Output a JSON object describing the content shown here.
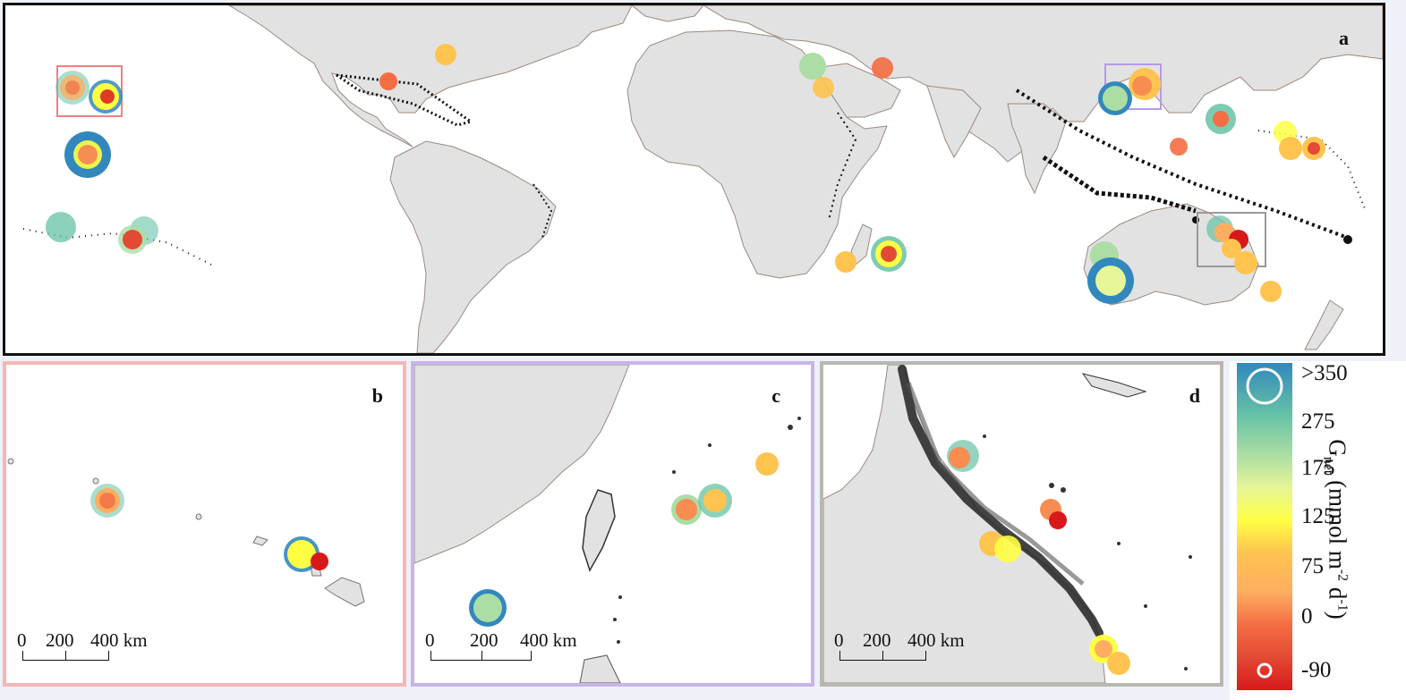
{
  "panels": {
    "a": {
      "label": "a"
    },
    "b": {
      "label": "b",
      "scale": {
        "ticks": [
          "0",
          "200",
          "400 km"
        ]
      }
    },
    "c": {
      "label": "c",
      "scale": {
        "ticks": [
          "0",
          "200",
          "400 km"
        ]
      }
    },
    "d": {
      "label": "d",
      "scale": {
        "ticks": [
          "0",
          "200",
          "400 km"
        ]
      }
    }
  },
  "legend": {
    "title_main": "G",
    "title_sub": "net",
    "title_unit_pre": " (mmol m",
    "title_sup1": "-2",
    "title_mid": " d",
    "title_sup2": "-1",
    "title_end": ")",
    "ticks": [
      ">350",
      "275",
      "175",
      "125",
      "75",
      "0",
      "-90"
    ]
  },
  "colors": {
    "land": "#e2e2e2",
    "coast": "#9a8a80",
    "reef": "#111111",
    "frame_a": "#111111",
    "frame_b": "#f6b6b6",
    "frame_c": "#c8b4ea",
    "frame_d": "#b9b7b2",
    "scale": [
      "#d7191c",
      "#e34a33",
      "#f46d43",
      "#f88d52",
      "#fdae61",
      "#fec44f",
      "#fee08b",
      "#ffff44",
      "#e6f598",
      "#abdda4",
      "#66c2a5",
      "#3288bd"
    ]
  },
  "markers": [
    {
      "value": 175,
      "color": "#66c2a5"
    },
    {
      "value": 125,
      "color": "#ffff44"
    },
    {
      "value": 75,
      "color": "#fdae61"
    },
    {
      "value": 0,
      "color": "#f46d43"
    },
    {
      "value": -90,
      "color": "#d7191c"
    }
  ]
}
